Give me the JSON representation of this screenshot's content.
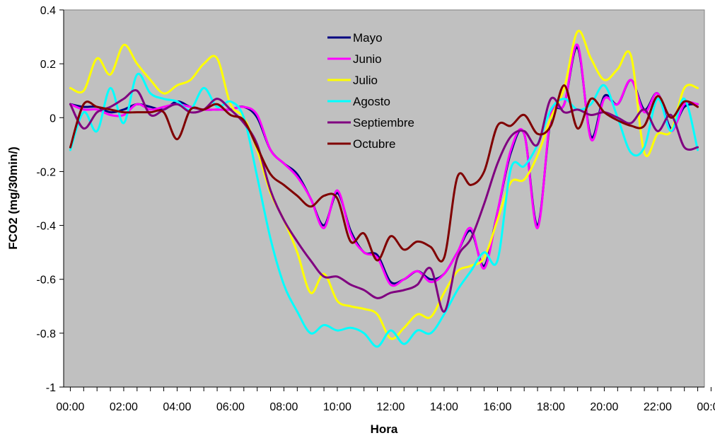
{
  "chart_data": {
    "type": "line",
    "xlabel": "Hora",
    "ylabel": "FCO2 (mg/30min/)",
    "ylim": [
      -1,
      0.4
    ],
    "yticks": [
      0.4,
      0.2,
      0,
      -0.2,
      -0.4,
      -0.6,
      -0.8,
      -1
    ],
    "ytick_labels": [
      "0.4",
      "0.2",
      "0",
      "-0.2",
      "-0.4",
      "-0.6",
      "-0.8",
      "-1"
    ],
    "xlim": [
      -0.25,
      23.75
    ],
    "xticks": [
      0,
      2,
      4,
      6,
      8,
      10,
      12,
      14,
      16,
      18,
      20,
      22,
      24
    ],
    "xtick_labels": [
      "00:00",
      "02:00",
      "04:00",
      "06:00",
      "08:00",
      "10:00",
      "12:00",
      "14:00",
      "16:00",
      "18:00",
      "20:00",
      "22:00",
      "00:00"
    ],
    "plot_background": "#c0c0c0",
    "grid": false,
    "legend_position": "top-center",
    "x": [
      0,
      0.5,
      1,
      1.5,
      2,
      2.5,
      3,
      3.5,
      4,
      4.5,
      5,
      5.5,
      6,
      6.5,
      7,
      7.5,
      8,
      8.5,
      9,
      9.5,
      10,
      10.5,
      11,
      11.5,
      12,
      12.5,
      13,
      13.5,
      14,
      14.5,
      15,
      15.5,
      16,
      16.5,
      17,
      17.5,
      18,
      18.5,
      19,
      19.5,
      20,
      20.5,
      21,
      21.5,
      22,
      22.5,
      23,
      23.5
    ],
    "series": [
      {
        "name": "Mayo",
        "color": "#000080",
        "values": [
          0.05,
          0.04,
          0.04,
          0.02,
          0.03,
          0.05,
          0.04,
          0.03,
          0.06,
          0.04,
          0.03,
          0.03,
          0.03,
          0.04,
          0.0,
          -0.12,
          -0.17,
          -0.21,
          -0.3,
          -0.4,
          -0.28,
          -0.42,
          -0.5,
          -0.51,
          -0.61,
          -0.6,
          -0.57,
          -0.6,
          -0.58,
          -0.5,
          -0.42,
          -0.55,
          -0.35,
          -0.13,
          -0.06,
          -0.4,
          0.0,
          0.05,
          0.26,
          -0.07,
          0.08,
          0.05,
          0.14,
          0.03,
          0.09,
          -0.04,
          0.04,
          0.05
        ]
      },
      {
        "name": "Junio",
        "color": "#ff00ff",
        "values": [
          0.05,
          0.03,
          0.03,
          0.01,
          0.01,
          0.05,
          0.03,
          0.04,
          0.05,
          0.04,
          0.03,
          0.03,
          0.03,
          0.04,
          0.01,
          -0.12,
          -0.17,
          -0.22,
          -0.3,
          -0.41,
          -0.27,
          -0.43,
          -0.5,
          -0.52,
          -0.62,
          -0.6,
          -0.57,
          -0.61,
          -0.58,
          -0.5,
          -0.41,
          -0.56,
          -0.35,
          -0.12,
          -0.06,
          -0.41,
          0.01,
          0.05,
          0.27,
          -0.08,
          0.07,
          0.05,
          0.14,
          0.02,
          0.09,
          -0.05,
          0.05,
          0.05
        ]
      },
      {
        "name": "Julio",
        "color": "#ffff00",
        "values": [
          0.11,
          0.1,
          0.22,
          0.16,
          0.27,
          0.2,
          0.14,
          0.09,
          0.12,
          0.14,
          0.2,
          0.22,
          0.05,
          0.0,
          -0.12,
          -0.28,
          -0.38,
          -0.5,
          -0.65,
          -0.58,
          -0.68,
          -0.7,
          -0.71,
          -0.73,
          -0.82,
          -0.78,
          -0.73,
          -0.74,
          -0.65,
          -0.57,
          -0.55,
          -0.52,
          -0.38,
          -0.24,
          -0.23,
          -0.14,
          0.0,
          0.11,
          0.32,
          0.22,
          0.14,
          0.18,
          0.23,
          -0.13,
          -0.06,
          -0.05,
          0.11,
          0.11
        ]
      },
      {
        "name": "Agosto",
        "color": "#00ffff",
        "values": [
          -0.12,
          0.02,
          -0.05,
          0.11,
          -0.02,
          0.16,
          0.09,
          0.07,
          0.06,
          0.03,
          0.11,
          0.04,
          0.06,
          0.0,
          -0.22,
          -0.45,
          -0.62,
          -0.72,
          -0.8,
          -0.77,
          -0.79,
          -0.78,
          -0.8,
          -0.85,
          -0.79,
          -0.84,
          -0.79,
          -0.8,
          -0.73,
          -0.64,
          -0.57,
          -0.5,
          -0.53,
          -0.19,
          -0.18,
          -0.1,
          0.03,
          0.07,
          0.03,
          0.05,
          0.12,
          0.0,
          -0.13,
          -0.11,
          0.07,
          -0.05,
          0.07,
          -0.12
        ]
      },
      {
        "name": "Septiembre",
        "color": "#800080",
        "values": [
          0.05,
          -0.04,
          0.02,
          0.04,
          0.07,
          0.1,
          0.01,
          0.03,
          0.05,
          0.02,
          0.03,
          0.07,
          0.03,
          -0.02,
          -0.1,
          -0.27,
          -0.38,
          -0.46,
          -0.53,
          -0.59,
          -0.59,
          -0.62,
          -0.64,
          -0.67,
          -0.65,
          -0.64,
          -0.62,
          -0.56,
          -0.72,
          -0.52,
          -0.45,
          -0.32,
          -0.17,
          -0.07,
          -0.05,
          -0.1,
          0.07,
          0.02,
          0.03,
          0.01,
          0.02,
          0.0,
          -0.02,
          0.03,
          -0.05,
          0.01,
          -0.11,
          -0.11
        ]
      },
      {
        "name": "Octubre",
        "color": "#800000",
        "values": [
          -0.11,
          0.05,
          0.04,
          0.03,
          0.02,
          0.02,
          0.02,
          0.02,
          -0.08,
          0.03,
          0.03,
          0.05,
          0.01,
          -0.01,
          -0.11,
          -0.21,
          -0.25,
          -0.29,
          -0.33,
          -0.29,
          -0.3,
          -0.46,
          -0.43,
          -0.53,
          -0.44,
          -0.49,
          -0.46,
          -0.48,
          -0.52,
          -0.22,
          -0.25,
          -0.2,
          -0.03,
          -0.03,
          0.01,
          -0.06,
          -0.03,
          0.12,
          -0.04,
          0.07,
          0.02,
          -0.01,
          -0.03,
          -0.03,
          0.08,
          0.0,
          0.06,
          0.04
        ]
      }
    ]
  }
}
